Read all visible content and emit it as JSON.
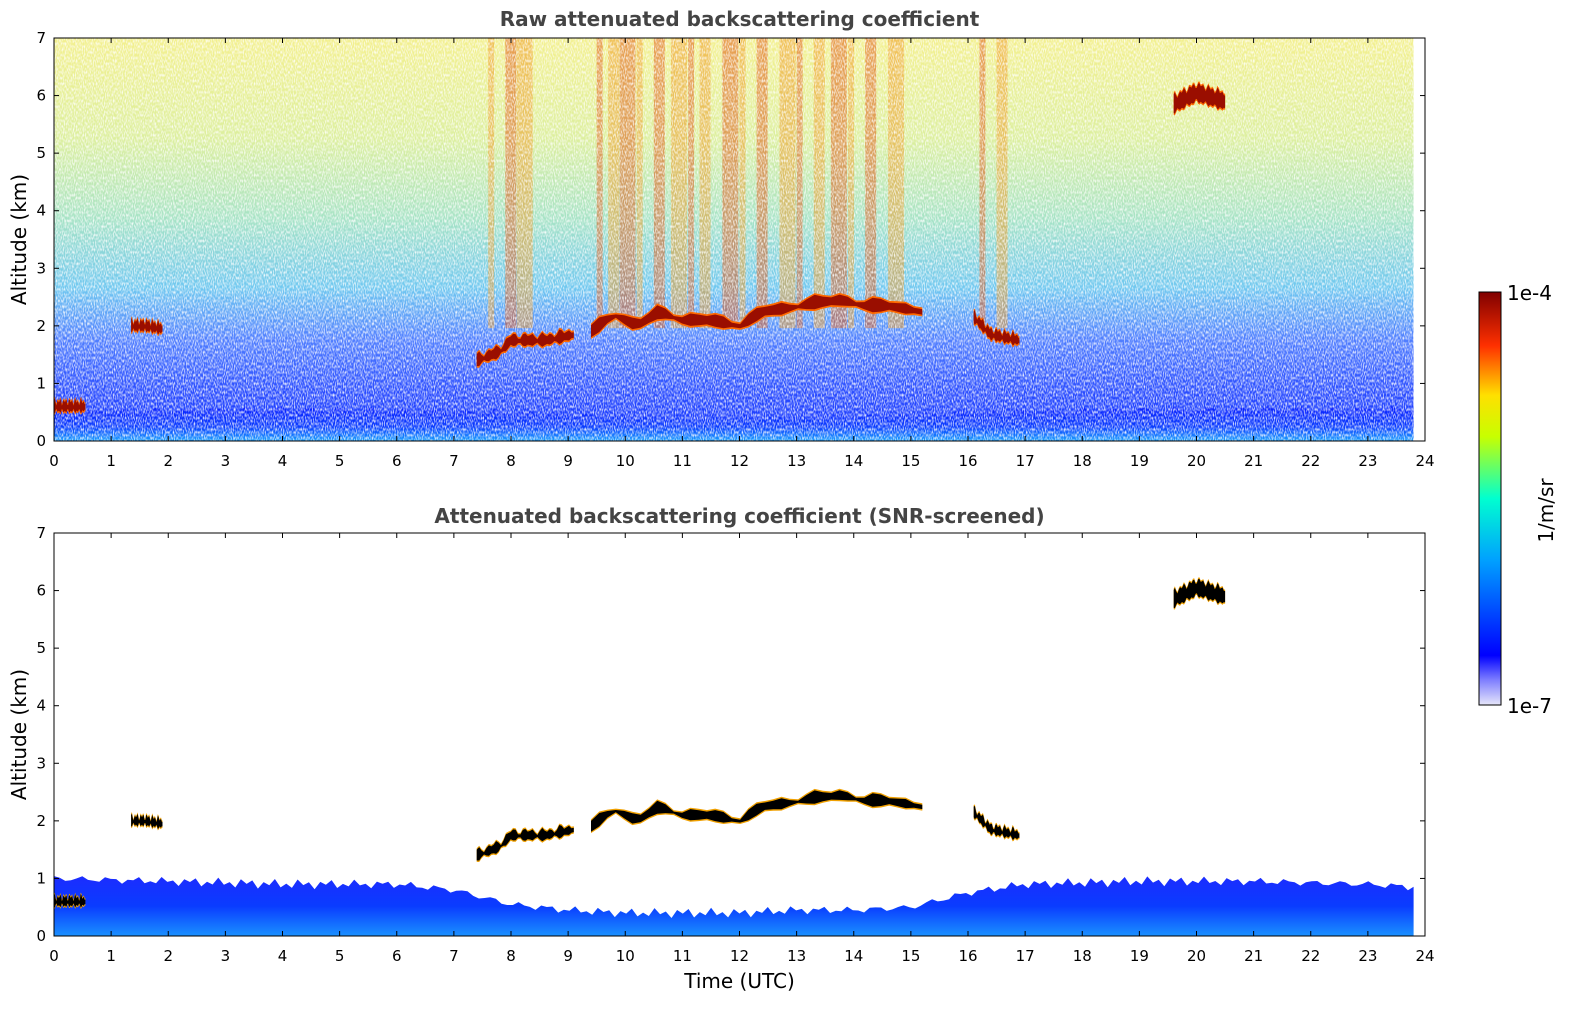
{
  "chart_data": [
    {
      "type": "heatmap",
      "title": "Raw attenuated backscattering coefficient",
      "xlabel": "",
      "ylabel": "Altitude (km)",
      "xlim": [
        0,
        24
      ],
      "ylim": [
        0,
        7
      ],
      "xticks": [
        0,
        1,
        2,
        3,
        4,
        5,
        6,
        7,
        8,
        9,
        10,
        11,
        12,
        13,
        14,
        15,
        16,
        17,
        18,
        19,
        20,
        21,
        22,
        23,
        24
      ],
      "yticks": [
        0,
        1,
        2,
        3,
        4,
        5,
        6,
        7
      ],
      "data_end_time": 23.8,
      "boundary_layer_top_km": [
        [
          0,
          0.5
        ],
        [
          4,
          0.55
        ],
        [
          8,
          0.5
        ],
        [
          10,
          0.4
        ],
        [
          12,
          0.4
        ],
        [
          14,
          0.4
        ],
        [
          16,
          0.5
        ],
        [
          20,
          0.55
        ],
        [
          23.8,
          0.55
        ]
      ],
      "cloud_layers": [
        {
          "t_start": 1.35,
          "t_end": 1.9,
          "alt_km": [
            [
              1.35,
              2.0
            ],
            [
              1.6,
              2.0
            ],
            [
              1.9,
              1.95
            ]
          ]
        },
        {
          "t_start": 7.4,
          "t_end": 9.1,
          "alt_km": [
            [
              7.4,
              1.4
            ],
            [
              7.8,
              1.55
            ],
            [
              8.0,
              1.75
            ],
            [
              8.6,
              1.75
            ],
            [
              9.1,
              1.85
            ]
          ]
        },
        {
          "t_start": 9.4,
          "t_end": 15.2,
          "alt_km": [
            [
              9.4,
              1.9
            ],
            [
              9.8,
              2.2
            ],
            [
              10.2,
              2.0
            ],
            [
              10.6,
              2.25
            ],
            [
              11.0,
              2.1
            ],
            [
              11.5,
              2.1
            ],
            [
              12.0,
              2.0
            ],
            [
              12.4,
              2.25
            ],
            [
              12.8,
              2.3
            ],
            [
              13.3,
              2.4
            ],
            [
              13.8,
              2.45
            ],
            [
              14.2,
              2.35
            ],
            [
              14.6,
              2.35
            ],
            [
              15.2,
              2.25
            ]
          ]
        },
        {
          "t_start": 16.1,
          "t_end": 16.9,
          "alt_km": [
            [
              16.1,
              2.15
            ],
            [
              16.4,
              1.85
            ],
            [
              16.9,
              1.75
            ]
          ]
        },
        {
          "t_start": 19.6,
          "t_end": 20.5,
          "alt_km": [
            [
              19.6,
              5.85
            ],
            [
              20.0,
              6.05
            ],
            [
              20.5,
              5.9
            ]
          ]
        },
        {
          "t_start": 0.0,
          "t_end": 0.55,
          "alt_km": [
            [
              0.0,
              0.6
            ],
            [
              0.3,
              0.6
            ],
            [
              0.55,
              0.6
            ]
          ]
        }
      ]
    },
    {
      "type": "heatmap",
      "title": "Attenuated backscattering coefficient (SNR-screened)",
      "xlabel": "Time (UTC)",
      "ylabel": "Altitude (km)",
      "xlim": [
        0,
        24
      ],
      "ylim": [
        0,
        7
      ],
      "xticks": [
        0,
        1,
        2,
        3,
        4,
        5,
        6,
        7,
        8,
        9,
        10,
        11,
        12,
        13,
        14,
        15,
        16,
        17,
        18,
        19,
        20,
        21,
        22,
        23,
        24
      ],
      "yticks": [
        0,
        1,
        2,
        3,
        4,
        5,
        6,
        7
      ],
      "screened_signal_top_km": [
        [
          0,
          1.0
        ],
        [
          2,
          0.95
        ],
        [
          4,
          0.9
        ],
        [
          6,
          0.9
        ],
        [
          7,
          0.8
        ],
        [
          8,
          0.55
        ],
        [
          9,
          0.45
        ],
        [
          10,
          0.4
        ],
        [
          11,
          0.4
        ],
        [
          12,
          0.4
        ],
        [
          13,
          0.45
        ],
        [
          14,
          0.45
        ],
        [
          15,
          0.5
        ],
        [
          16,
          0.75
        ],
        [
          17,
          0.9
        ],
        [
          19,
          0.95
        ],
        [
          21,
          0.95
        ],
        [
          23,
          0.9
        ],
        [
          23.8,
          0.85
        ]
      ]
    }
  ],
  "colorbar": {
    "label": "1/m/sr",
    "min_label": "1e-7",
    "max_label": "1e-4",
    "colormap": "jet",
    "scale": "log",
    "colors": [
      "#e6e6fa",
      "#0000ff",
      "#00bfff",
      "#00ffd0",
      "#c8ff00",
      "#ffd000",
      "#ff4000",
      "#800000"
    ]
  }
}
